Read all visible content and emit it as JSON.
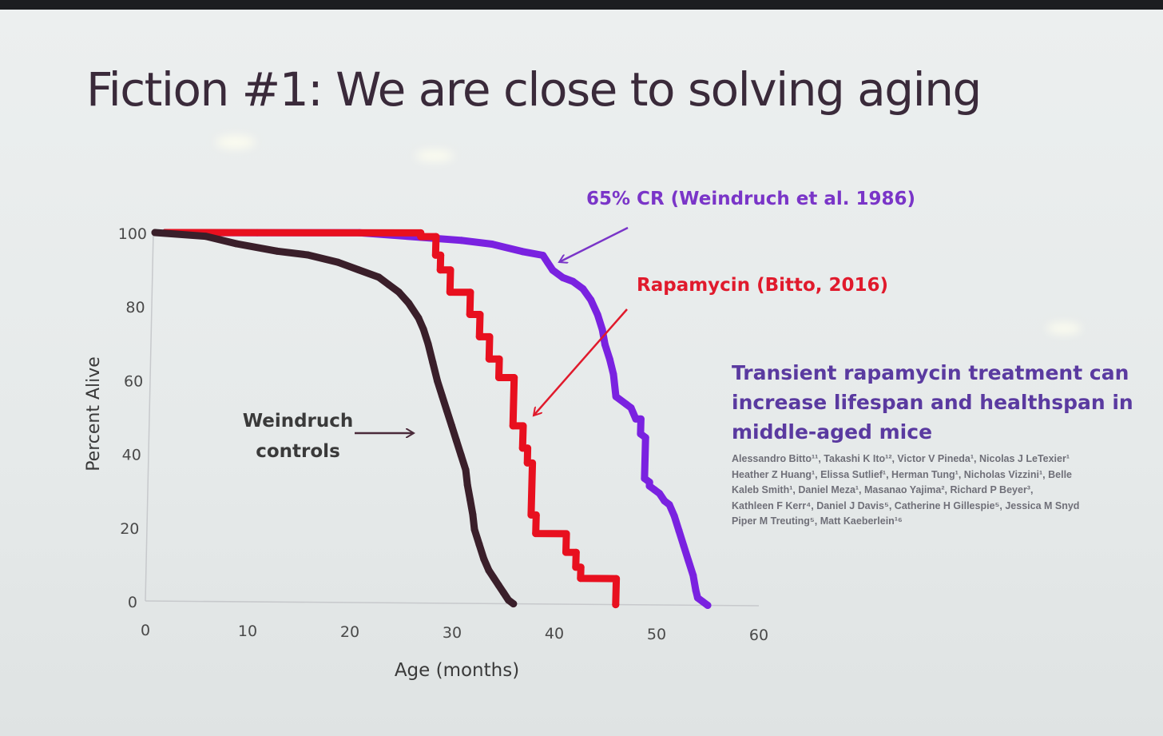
{
  "slide": {
    "title": "Fiction #1: We are close to solving aging"
  },
  "paper": {
    "title": "Transient rapamycin treatment can increase lifespan and healthspan in middle-aged mice",
    "authors": "Alessandro Bitto¹¹, Takashi K Ito¹², Victor V Pineda¹, Nicolas J LeTexier¹\nHeather Z Huang¹, Elissa Sutlief¹, Herman Tung¹, Nicholas Vizzini¹, Belle\nKaleb Smith¹, Daniel Meza¹, Masanao Yajima², Richard P Beyer³,\nKathleen F Kerr⁴, Daniel J Davis⁵, Catherine H Gillespie⁵, Jessica M Snyd\nPiper M Treuting⁵, Matt Kaeberlein¹⁶"
  },
  "annotations": {
    "cr": "65% CR (Weindruch et al. 1986)",
    "rapamycin": "Rapamycin (Bitto, 2016)",
    "controls": "Weindruch controls"
  },
  "chart_data": {
    "type": "line",
    "xlabel": "Age (months)",
    "ylabel": "Percent Alive",
    "xlim": [
      0,
      60
    ],
    "ylim": [
      0,
      100
    ],
    "x_ticks": [
      0,
      10,
      20,
      30,
      40,
      50,
      60
    ],
    "y_ticks": [
      0,
      20,
      40,
      60,
      80,
      100
    ],
    "grid": false,
    "series": [
      {
        "name": "Weindruch controls",
        "color": "#3a1f2a",
        "points": [
          [
            0,
            100
          ],
          [
            5,
            99
          ],
          [
            8,
            97
          ],
          [
            12,
            95
          ],
          [
            15,
            94
          ],
          [
            18,
            92
          ],
          [
            20,
            90
          ],
          [
            22,
            88
          ],
          [
            23,
            86
          ],
          [
            24,
            84
          ],
          [
            25,
            81
          ],
          [
            26,
            77
          ],
          [
            26.5,
            74
          ],
          [
            27,
            70
          ],
          [
            27.5,
            65
          ],
          [
            28,
            60
          ],
          [
            28.5,
            56
          ],
          [
            29,
            52
          ],
          [
            29.5,
            48
          ],
          [
            30,
            44
          ],
          [
            30.5,
            40
          ],
          [
            31,
            36
          ],
          [
            31.2,
            32
          ],
          [
            31.5,
            28
          ],
          [
            31.8,
            24
          ],
          [
            32,
            20
          ],
          [
            32.5,
            16
          ],
          [
            33,
            12
          ],
          [
            33.5,
            9
          ],
          [
            34,
            7
          ],
          [
            34.5,
            5
          ],
          [
            35,
            3
          ],
          [
            35.5,
            1
          ],
          [
            36,
            0
          ]
        ]
      },
      {
        "name": "Rapamycin (Bitto, 2016)",
        "color": "#e8101f",
        "points": [
          [
            1,
            100
          ],
          [
            26,
            100
          ],
          [
            26,
            99
          ],
          [
            27.5,
            99
          ],
          [
            27.5,
            94
          ],
          [
            28,
            94
          ],
          [
            28,
            90
          ],
          [
            29,
            90
          ],
          [
            29,
            84
          ],
          [
            31,
            84
          ],
          [
            31,
            78
          ],
          [
            32,
            78
          ],
          [
            32,
            72
          ],
          [
            33,
            72
          ],
          [
            33,
            66
          ],
          [
            34,
            66
          ],
          [
            34,
            61
          ],
          [
            35.5,
            61
          ],
          [
            35.5,
            48
          ],
          [
            36.5,
            48
          ],
          [
            36.5,
            42
          ],
          [
            37,
            42
          ],
          [
            37,
            38
          ],
          [
            37.5,
            38
          ],
          [
            37.5,
            24
          ],
          [
            38,
            24
          ],
          [
            38,
            19
          ],
          [
            41,
            19
          ],
          [
            41,
            14
          ],
          [
            42,
            14
          ],
          [
            42,
            10
          ],
          [
            42.5,
            10
          ],
          [
            42.5,
            7
          ],
          [
            46,
            7
          ],
          [
            46,
            0
          ]
        ]
      },
      {
        "name": "65% CR (Weindruch et al. 1986)",
        "color": "#7a22e0",
        "points": [
          [
            1,
            100
          ],
          [
            10,
            100
          ],
          [
            20,
            100
          ],
          [
            25,
            99
          ],
          [
            30,
            98
          ],
          [
            33,
            97
          ],
          [
            36,
            95
          ],
          [
            38,
            94
          ],
          [
            38.5,
            92
          ],
          [
            39,
            90
          ],
          [
            40,
            88
          ],
          [
            41,
            87
          ],
          [
            42,
            85
          ],
          [
            42.8,
            82
          ],
          [
            43.5,
            78
          ],
          [
            44,
            74
          ],
          [
            44.3,
            70
          ],
          [
            44.8,
            66
          ],
          [
            45.2,
            62
          ],
          [
            45.5,
            56
          ],
          [
            46.5,
            54
          ],
          [
            47,
            53
          ],
          [
            47.5,
            50
          ],
          [
            48,
            50
          ],
          [
            48,
            46
          ],
          [
            48.5,
            45
          ],
          [
            48.5,
            34
          ],
          [
            49,
            33
          ],
          [
            49,
            32
          ],
          [
            49.5,
            31
          ],
          [
            50,
            30
          ],
          [
            50.5,
            28
          ],
          [
            51,
            27
          ],
          [
            51.5,
            24
          ],
          [
            52,
            20
          ],
          [
            52.5,
            16
          ],
          [
            53,
            12
          ],
          [
            53.5,
            8
          ],
          [
            53.8,
            4
          ],
          [
            54,
            2
          ],
          [
            54.5,
            1
          ],
          [
            55,
            0
          ]
        ]
      }
    ]
  }
}
